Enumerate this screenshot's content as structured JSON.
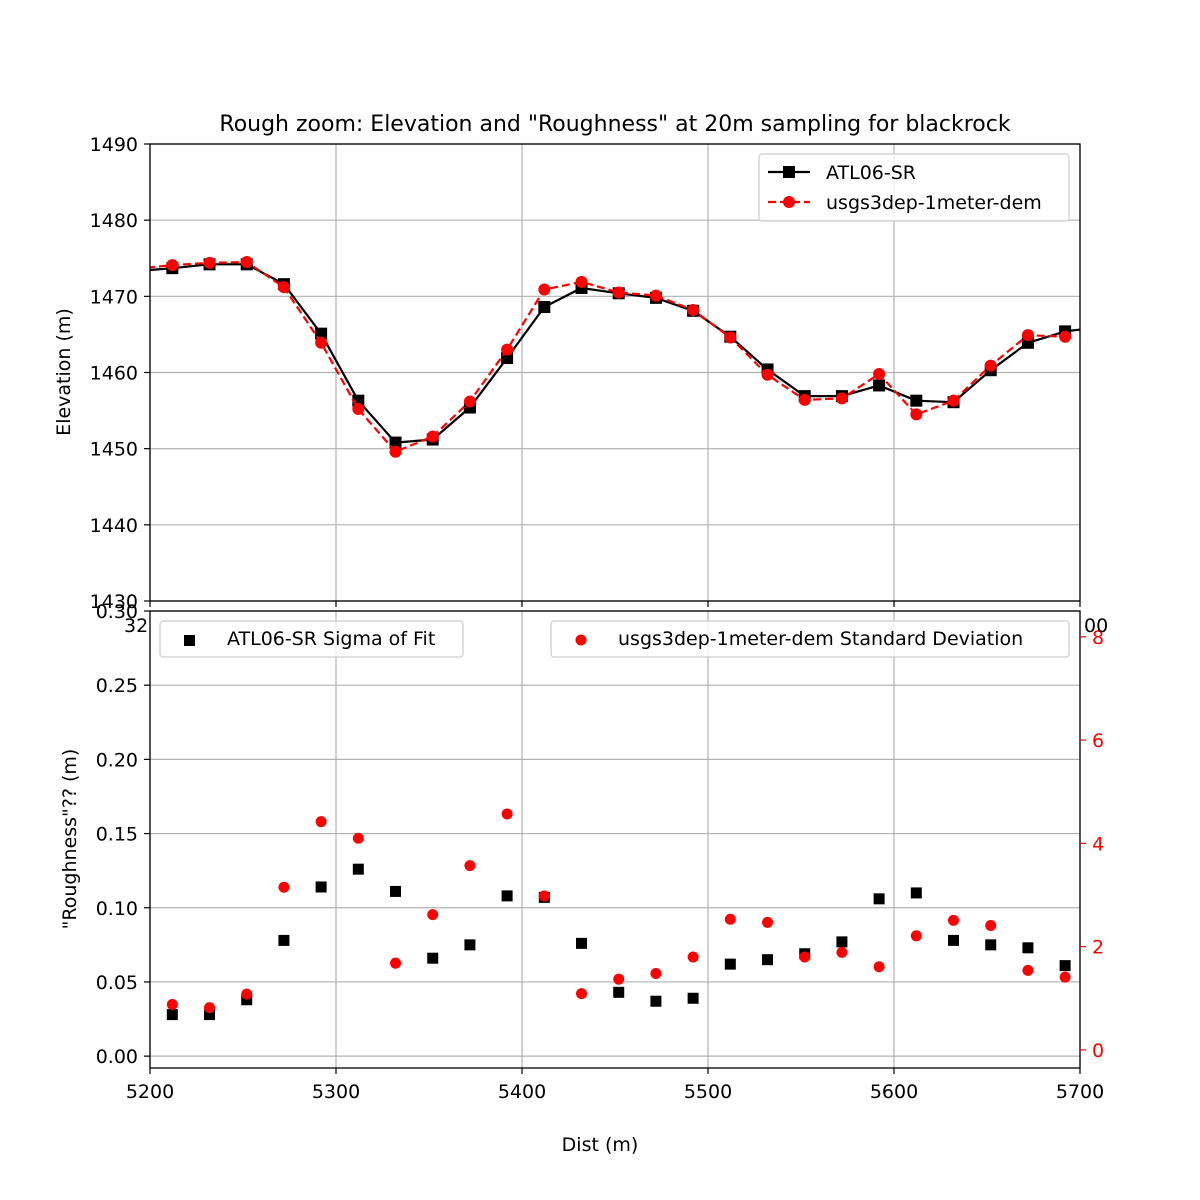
{
  "chart_data": [
    {
      "type": "line",
      "title": "Rough zoom: Elevation and \"Roughness\" at 20m sampling for blackrock",
      "xlabel": "",
      "ylabel": "Elevation (m)",
      "xlim": [
        5200,
        5700
      ],
      "ylim": [
        1430,
        1490
      ],
      "grid": true,
      "legend_placement": "top-right",
      "x_ticks": [
        "5200",
        "5300",
        "5400",
        "5500",
        "5600",
        "5700"
      ],
      "y_ticks": [
        "1430",
        "1440",
        "1450",
        "1460",
        "1470",
        "1480",
        "1490"
      ],
      "series": [
        {
          "name": "ATL06-SR",
          "style": "solid-square",
          "color": "#000000",
          "x": [
            5192,
            5212,
            5232,
            5252,
            5272,
            5292,
            5312,
            5332,
            5352,
            5372,
            5392,
            5412,
            5432,
            5452,
            5472,
            5492,
            5512,
            5532,
            5552,
            5572,
            5592,
            5612,
            5632,
            5652,
            5672,
            5692,
            5712
          ],
          "y": [
            1473.3,
            1473.7,
            1474.2,
            1474.2,
            1471.6,
            1465.1,
            1456.3,
            1450.8,
            1451.2,
            1455.4,
            1461.9,
            1468.6,
            1471.1,
            1470.4,
            1469.8,
            1468.1,
            1464.7,
            1460.4,
            1456.9,
            1456.9,
            1458.3,
            1456.3,
            1456.1,
            1460.3,
            1463.9,
            1465.4,
            1466.0
          ]
        },
        {
          "name": "usgs3dep-1meter-dem",
          "style": "dashed-circle",
          "color": "#ff0000",
          "x": [
            5192,
            5212,
            5232,
            5252,
            5272,
            5292,
            5312,
            5332,
            5352,
            5372,
            5392,
            5412,
            5432,
            5452,
            5472,
            5492,
            5512,
            5532,
            5552,
            5572,
            5592,
            5612,
            5632,
            5652,
            5672,
            5692
          ],
          "y": [
            1473.6,
            1474.1,
            1474.4,
            1474.5,
            1471.2,
            1463.9,
            1455.2,
            1449.6,
            1451.6,
            1456.2,
            1463.0,
            1470.9,
            1471.9,
            1470.5,
            1470.1,
            1468.2,
            1464.6,
            1459.7,
            1456.4,
            1456.6,
            1459.8,
            1454.5,
            1456.3,
            1460.9,
            1464.9,
            1464.7
          ]
        }
      ]
    },
    {
      "type": "scatter",
      "title": "",
      "xlabel": "Dist (m)",
      "ylabel": "\"Roughness\"?? (m)",
      "y2label": "",
      "xlim": [
        5200,
        5700
      ],
      "ylim": [
        -0.008,
        0.3
      ],
      "y2lim": [
        -0.35,
        8.5
      ],
      "grid": true,
      "x_ticks": [
        "5200",
        "5300",
        "5400",
        "5500",
        "5600",
        "5700"
      ],
      "y_ticks": [
        "0.00",
        "0.05",
        "0.10",
        "0.15",
        "0.20",
        "0.25",
        "0.30"
      ],
      "y2_ticks": [
        "0",
        "2",
        "4",
        "6",
        "8"
      ],
      "overlap_text": {
        "left_top": "32",
        "right_top": "00"
      },
      "series": [
        {
          "name": "ATL06-SR Sigma of Fit",
          "axis": "left",
          "marker": "square",
          "color": "#000000",
          "legend_placement": "top-left",
          "x": [
            5212,
            5232,
            5252,
            5272,
            5292,
            5312,
            5332,
            5352,
            5372,
            5392,
            5412,
            5432,
            5452,
            5472,
            5492,
            5512,
            5532,
            5552,
            5572,
            5592,
            5612,
            5632,
            5652,
            5672,
            5692
          ],
          "y": [
            0.028,
            0.028,
            0.038,
            0.078,
            0.114,
            0.126,
            0.111,
            0.066,
            0.075,
            0.108,
            0.107,
            0.076,
            0.043,
            0.037,
            0.039,
            0.062,
            0.065,
            0.069,
            0.077,
            0.106,
            0.11,
            0.078,
            0.075,
            0.073,
            0.061
          ]
        },
        {
          "name": "usgs3dep-1meter-dem Standard Deviation",
          "axis": "right",
          "marker": "circle",
          "color": "#ff0000",
          "legend_placement": "top-right",
          "x": [
            5212,
            5232,
            5252,
            5272,
            5292,
            5312,
            5332,
            5352,
            5372,
            5392,
            5412,
            5432,
            5452,
            5472,
            5492,
            5512,
            5532,
            5552,
            5572,
            5592,
            5612,
            5632,
            5652,
            5672,
            5692
          ],
          "y": [
            0.88,
            0.82,
            1.08,
            3.15,
            4.42,
            4.1,
            1.68,
            2.62,
            3.57,
            4.57,
            2.98,
            1.09,
            1.37,
            1.48,
            1.8,
            2.53,
            2.47,
            1.8,
            1.89,
            1.61,
            2.21,
            2.51,
            2.41,
            1.54,
            1.41
          ]
        }
      ]
    }
  ]
}
